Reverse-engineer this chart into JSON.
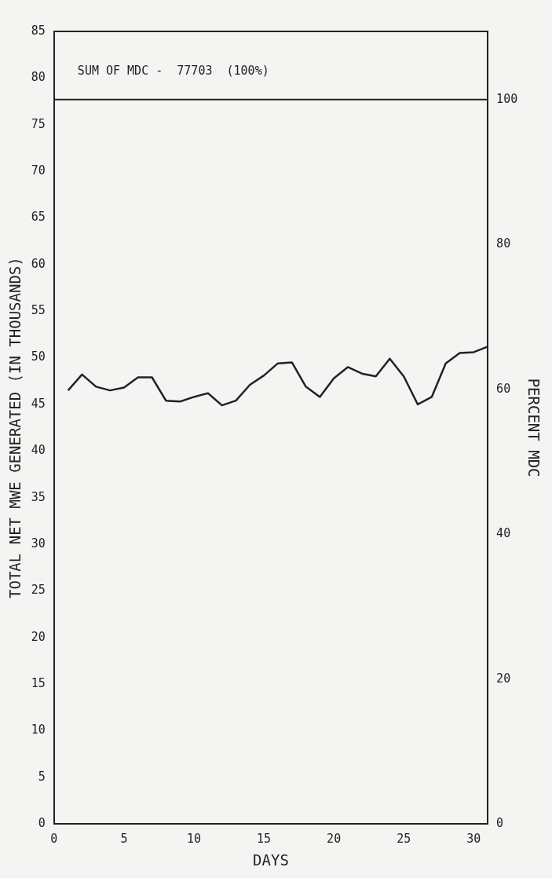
{
  "chart_data": {
    "type": "line",
    "xlabel": "DAYS",
    "ylabel": "TOTAL NET MWE GENERATED (IN THOUSANDS)",
    "y2label": "PERCENT MDC",
    "x": [
      1,
      2,
      3,
      4,
      5,
      6,
      7,
      8,
      9,
      10,
      11,
      12,
      13,
      14,
      15,
      16,
      17,
      18,
      19,
      20,
      21,
      22,
      23,
      24,
      25,
      26,
      27,
      28,
      29,
      30,
      31
    ],
    "series": [
      {
        "color": "#222222",
        "values": [
          46.5,
          48.2,
          46.9,
          46.5,
          46.8,
          47.9,
          47.9,
          45.4,
          45.3,
          45.8,
          46.2,
          44.9,
          45.4,
          47.1,
          48.1,
          49.4,
          49.5,
          46.9,
          45.8,
          47.8,
          49.0,
          48.3,
          48.0,
          49.9,
          48.0,
          45.0,
          45.8,
          49.4,
          50.5,
          50.6,
          51.2
        ]
      }
    ],
    "xlim": [
      0,
      31
    ],
    "xticks": [
      0,
      5,
      10,
      15,
      20,
      25,
      30
    ],
    "ylim": [
      0,
      85
    ],
    "yticks": [
      0,
      5,
      10,
      15,
      20,
      25,
      30,
      35,
      40,
      45,
      50,
      55,
      60,
      65,
      70,
      75,
      80,
      85
    ],
    "y2lim": [
      0,
      109.4
    ],
    "y2ticks": [
      0,
      20,
      40,
      60,
      80,
      100
    ],
    "ref_lines": [
      {
        "axis": "y2",
        "value": 100,
        "label": "SUM OF MDC -  77703  (100%)",
        "color": "#222222"
      }
    ],
    "legend": false,
    "marker": "none",
    "line_style": "solid"
  }
}
